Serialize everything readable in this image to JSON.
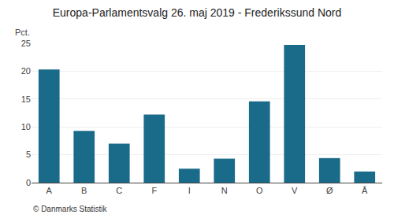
{
  "chart_data": {
    "type": "bar",
    "title": "Europa-Parlamentsvalg 26. maj 2019 - Frederikssund Nord",
    "ylabel": "Pct.",
    "annotations": [
      "© Danmarks Statistik"
    ],
    "categories": [
      "A",
      "B",
      "C",
      "F",
      "I",
      "N",
      "O",
      "V",
      "Ø",
      "Å"
    ],
    "values": [
      20.3,
      9.3,
      7.0,
      12.2,
      2.5,
      4.3,
      14.6,
      24.7,
      4.4,
      2.0
    ],
    "color": "#1a6b8a",
    "ylim": [
      0,
      25
    ],
    "yticks": [
      0,
      5,
      10,
      15,
      20,
      25
    ],
    "grid": true
  }
}
